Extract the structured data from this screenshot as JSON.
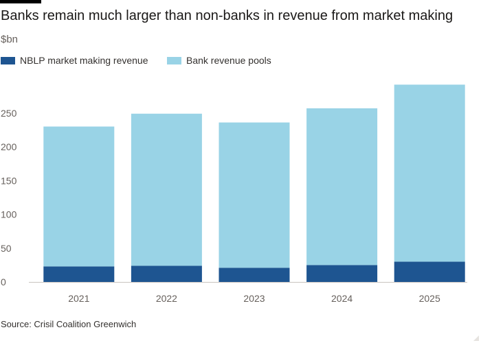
{
  "title": "Banks remain much larger than non-banks in revenue from market making",
  "subtitle": "$bn",
  "source": "Source: Crisil Coalition Greenwich",
  "colors": {
    "nblp": "#1e5591",
    "bank": "#99d3e6"
  },
  "chart_data": {
    "type": "bar",
    "stacked": true,
    "categories": [
      "2021",
      "2022",
      "2023",
      "2024",
      "2025"
    ],
    "series": [
      {
        "name": "NBLP market making revenue",
        "values": [
          23,
          24,
          21,
          25,
          30
        ]
      },
      {
        "name": "Bank revenue pools",
        "values": [
          207,
          225,
          215,
          232,
          262
        ]
      }
    ],
    "ylim": [
      0,
      290
    ],
    "yticks": [
      0,
      50,
      100,
      150,
      200,
      250
    ],
    "legend_position": "top-left",
    "grid": false
  }
}
